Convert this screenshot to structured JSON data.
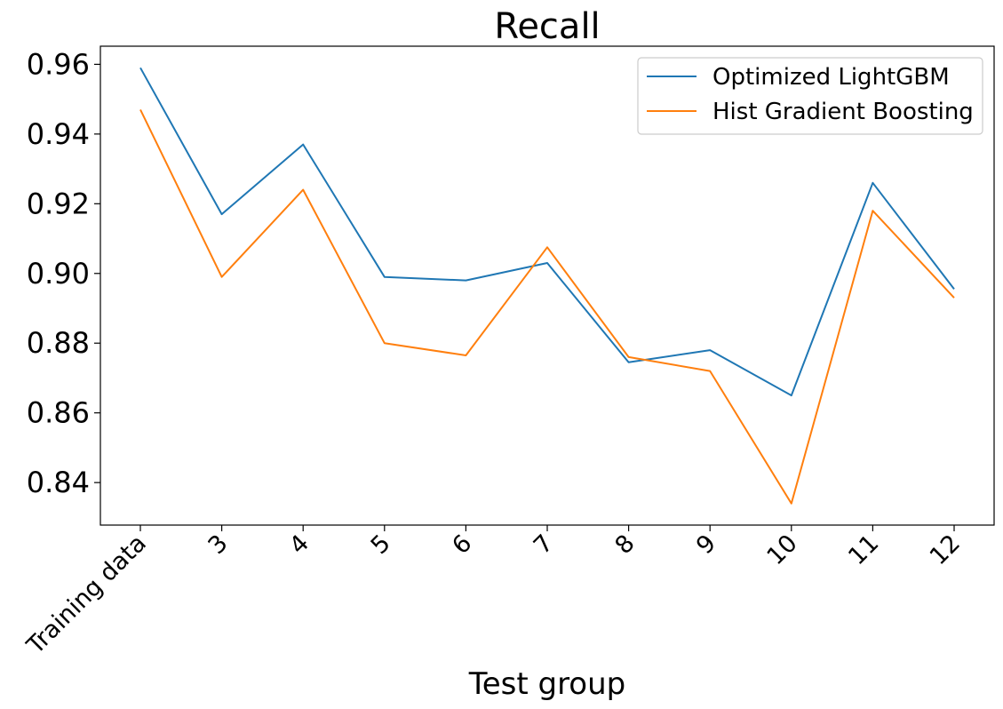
{
  "chart_data": {
    "type": "line",
    "title": "Recall",
    "xlabel": "Test group",
    "ylabel": "",
    "categories": [
      "Training data",
      "3",
      "4",
      "5",
      "6",
      "7",
      "8",
      "9",
      "10",
      "11",
      "12"
    ],
    "yticks": [
      "0.84",
      "0.86",
      "0.88",
      "0.90",
      "0.92",
      "0.94",
      "0.96"
    ],
    "ylim": [
      0.8278,
      0.9652
    ],
    "grid": false,
    "legend_position": "upper right",
    "series": [
      {
        "name": "Optimized LightGBM",
        "color": "#1f77b4",
        "values": [
          0.959,
          0.917,
          0.937,
          0.899,
          0.898,
          0.903,
          0.8745,
          0.878,
          0.865,
          0.926,
          0.8955
        ]
      },
      {
        "name": "Hist Gradient Boosting",
        "color": "#ff7f0e",
        "values": [
          0.947,
          0.899,
          0.924,
          0.88,
          0.8765,
          0.9075,
          0.876,
          0.872,
          0.834,
          0.918,
          0.893
        ]
      }
    ]
  }
}
